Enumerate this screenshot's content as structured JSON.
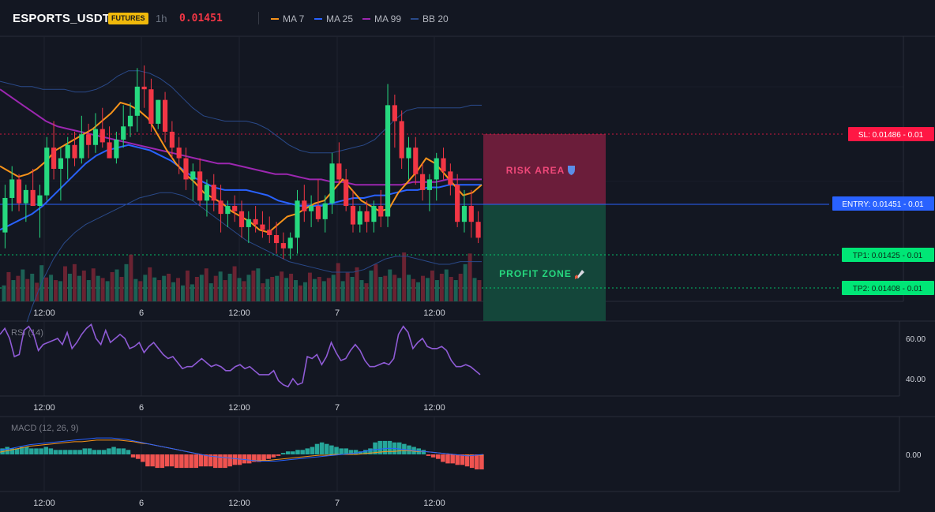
{
  "header": {
    "symbol": "ESPORTS_USDT",
    "badge": "FUTURES",
    "timeframe": "1h",
    "price": "0.01451",
    "legend": [
      {
        "label": "MA 7",
        "color": "#f7931a"
      },
      {
        "label": "MA 25",
        "color": "#2962ff"
      },
      {
        "label": "MA 99",
        "color": "#9c27b0"
      },
      {
        "label": "BB 20",
        "color": "#2a4a8a"
      }
    ]
  },
  "colors": {
    "background": "#131722",
    "up": "#26d97f",
    "down": "#f23645",
    "risk_fill": "#6b1d3a",
    "profit_fill": "#14463a",
    "entry": "#2962ff",
    "take_profit": "#00e676",
    "stop_loss": "#ff1744"
  },
  "trade": {
    "sl_label": "SL: 0.01486 - 0.01",
    "entry_label": "ENTRY: 0.01451 - 0.01",
    "tp1_label": "TP1: 0.01425 - 0.01",
    "tp2_label": "TP2: 0.01408 - 0.01",
    "risk_label": "RISK AREA",
    "risk_icon": "shield-icon",
    "profit_label": "PROFIT ZONE",
    "profit_icon": "rocket-icon"
  },
  "time_axis": [
    "12:00",
    "6",
    "12:00",
    "7",
    "12:00"
  ],
  "rsi": {
    "label": "RSI (14)",
    "ticks": [
      "60.00",
      "40.00"
    ],
    "y_range": [
      30,
      70
    ],
    "values": [
      62,
      65,
      60,
      51,
      52,
      64,
      66,
      62,
      54,
      57,
      58,
      59,
      60,
      57,
      63,
      55,
      58,
      62,
      65,
      67,
      60,
      57,
      64,
      58,
      60,
      62,
      60,
      55,
      56,
      58,
      53,
      56,
      58,
      55,
      52,
      50,
      51,
      48,
      45,
      46,
      46,
      48,
      50,
      48,
      46,
      47,
      46,
      44,
      44,
      46,
      47,
      45,
      46,
      44,
      42,
      42,
      42,
      44,
      39,
      37,
      36,
      40,
      37,
      38,
      51,
      50,
      52,
      47,
      51,
      58,
      53,
      49,
      50,
      54,
      57,
      54,
      49,
      46,
      46,
      47,
      48,
      47,
      50,
      62,
      66,
      63,
      55,
      58,
      60,
      56,
      55,
      55,
      56,
      54,
      49,
      46,
      46,
      47,
      46,
      44,
      42
    ]
  },
  "macd": {
    "label": "MACD (12, 26, 9)",
    "tick": "0.00",
    "histogram": [
      4,
      5,
      4,
      4,
      5,
      5,
      4,
      4,
      4,
      5,
      4,
      3,
      3,
      3,
      3,
      3,
      3,
      4,
      4,
      3,
      3,
      3,
      4,
      5,
      4,
      4,
      3,
      -2,
      -3,
      -5,
      -8,
      -8,
      -9,
      -9,
      -8,
      -8,
      -9,
      -9,
      -9,
      -9,
      -9,
      -8,
      -8,
      -8,
      -9,
      -9,
      -9,
      -8,
      -7,
      -7,
      -6,
      -6,
      -5,
      -5,
      -4,
      -3,
      -2,
      -1,
      1,
      2,
      2,
      3,
      3,
      4,
      5,
      7,
      8,
      7,
      6,
      5,
      4,
      4,
      3,
      3,
      2,
      3,
      4,
      8,
      9,
      9,
      9,
      8,
      8,
      7,
      6,
      5,
      4,
      3,
      -1,
      -2,
      -3,
      -5,
      -6,
      -6,
      -7,
      -7,
      -8,
      -9,
      -10,
      -10
    ],
    "macd_line": [
      6,
      7,
      9,
      11,
      13,
      14,
      15,
      16,
      17,
      18,
      19,
      20,
      21,
      22,
      22,
      22,
      21,
      20,
      18,
      16,
      14,
      12,
      10,
      8,
      6,
      4,
      2,
      0,
      -2,
      -3,
      -4,
      -5,
      -6,
      -7,
      -8,
      -9,
      -9,
      -9,
      -8,
      -7,
      -6,
      -5,
      -4,
      -3,
      -2,
      -1,
      0,
      1,
      2,
      4,
      6,
      7,
      8,
      8,
      7,
      6,
      5,
      4,
      3,
      2,
      1,
      0,
      -1,
      -2,
      -1,
      0
    ],
    "signal_line": [
      3,
      5,
      7,
      9,
      11,
      12,
      13,
      14,
      15,
      16,
      17,
      17,
      18,
      19,
      19,
      19,
      19,
      18,
      17,
      15,
      14,
      12,
      10,
      8,
      6,
      4,
      2,
      0,
      -2,
      -3,
      -4,
      -5,
      -6,
      -7,
      -8,
      -8,
      -8,
      -7,
      -6,
      -5,
      -4,
      -3,
      -2,
      -1,
      -1,
      0,
      0,
      0,
      0,
      1,
      2,
      3,
      4,
      4,
      5,
      5,
      4,
      4,
      3,
      2,
      1,
      0,
      -1,
      -1,
      -1,
      -1
    ],
    "y_range": [
      -25,
      28
    ]
  },
  "chart_data": {
    "type": "candlestick",
    "y_range": [
      0.01432,
      0.01532
    ],
    "candles": [
      [
        0.01458,
        0.01476,
        0.01452,
        0.01471
      ],
      [
        0.01471,
        0.01483,
        0.01466,
        0.01478
      ],
      [
        0.01478,
        0.0148,
        0.01466,
        0.01469
      ],
      [
        0.01469,
        0.01476,
        0.01462,
        0.01474
      ],
      [
        0.01474,
        0.01482,
        0.01468,
        0.01468
      ],
      [
        0.01468,
        0.01476,
        0.01456,
        0.01472
      ],
      [
        0.01472,
        0.01494,
        0.0147,
        0.0149
      ],
      [
        0.0149,
        0.015,
        0.01478,
        0.01482
      ],
      [
        0.01482,
        0.0149,
        0.0147,
        0.01486
      ],
      [
        0.01486,
        0.01494,
        0.01478,
        0.01491
      ],
      [
        0.01491,
        0.01496,
        0.01483,
        0.01486
      ],
      [
        0.01486,
        0.01502,
        0.01484,
        0.01495
      ],
      [
        0.01495,
        0.01499,
        0.01486,
        0.01491
      ],
      [
        0.01491,
        0.01503,
        0.01488,
        0.01497
      ],
      [
        0.01497,
        0.01505,
        0.0149,
        0.01492
      ],
      [
        0.01492,
        0.01498,
        0.01486,
        0.01486
      ],
      [
        0.01486,
        0.01496,
        0.01484,
        0.01493
      ],
      [
        0.01493,
        0.01506,
        0.0149,
        0.01498
      ],
      [
        0.01498,
        0.01507,
        0.01494,
        0.01502
      ],
      [
        0.01502,
        0.0152,
        0.01496,
        0.01513
      ],
      [
        0.01513,
        0.01521,
        0.01505,
        0.01512
      ],
      [
        0.01512,
        0.01516,
        0.01496,
        0.01499
      ],
      [
        0.01499,
        0.01508,
        0.01497,
        0.01508
      ],
      [
        0.01508,
        0.01511,
        0.01492,
        0.01496
      ],
      [
        0.01496,
        0.015,
        0.01486,
        0.0149
      ],
      [
        0.0149,
        0.01494,
        0.0148,
        0.01486
      ],
      [
        0.01486,
        0.0149,
        0.01474,
        0.01478
      ],
      [
        0.01478,
        0.01484,
        0.0147,
        0.01481
      ],
      [
        0.01481,
        0.01486,
        0.01468,
        0.0147
      ],
      [
        0.0147,
        0.01478,
        0.01464,
        0.01476
      ],
      [
        0.01476,
        0.0148,
        0.01466,
        0.0147
      ],
      [
        0.0147,
        0.01476,
        0.01458,
        0.01465
      ],
      [
        0.01465,
        0.0147,
        0.0146,
        0.01468
      ],
      [
        0.01468,
        0.01472,
        0.01462,
        0.01466
      ],
      [
        0.01466,
        0.0147,
        0.01456,
        0.0146
      ],
      [
        0.0146,
        0.01466,
        0.01454,
        0.01463
      ],
      [
        0.01463,
        0.01468,
        0.01458,
        0.01461
      ],
      [
        0.01461,
        0.01466,
        0.01456,
        0.01459
      ],
      [
        0.01459,
        0.01464,
        0.01454,
        0.01457
      ],
      [
        0.01457,
        0.01462,
        0.0145,
        0.01454
      ],
      [
        0.01454,
        0.01458,
        0.01448,
        0.01452
      ],
      [
        0.01452,
        0.01458,
        0.01448,
        0.01456
      ],
      [
        0.01456,
        0.01474,
        0.0145,
        0.0147
      ],
      [
        0.0147,
        0.01476,
        0.01462,
        0.01466
      ],
      [
        0.01466,
        0.01472,
        0.0146,
        0.01468
      ],
      [
        0.01468,
        0.01478,
        0.01462,
        0.01463
      ],
      [
        0.01463,
        0.01472,
        0.01458,
        0.01469
      ],
      [
        0.01469,
        0.01488,
        0.01465,
        0.01484
      ],
      [
        0.01484,
        0.01492,
        0.01476,
        0.01478
      ],
      [
        0.01478,
        0.01482,
        0.01466,
        0.01468
      ],
      [
        0.01468,
        0.01474,
        0.01458,
        0.01461
      ],
      [
        0.01461,
        0.01468,
        0.01458,
        0.01466
      ],
      [
        0.01466,
        0.0147,
        0.01458,
        0.01462
      ],
      [
        0.01462,
        0.0147,
        0.01458,
        0.01468
      ],
      [
        0.01468,
        0.01474,
        0.0146,
        0.01464
      ],
      [
        0.01464,
        0.01514,
        0.0146,
        0.01506
      ],
      [
        0.01506,
        0.0151,
        0.0149,
        0.015
      ],
      [
        0.015,
        0.01504,
        0.01482,
        0.01486
      ],
      [
        0.01486,
        0.01494,
        0.01478,
        0.0149
      ],
      [
        0.0149,
        0.01494,
        0.01476,
        0.0148
      ],
      [
        0.0148,
        0.01484,
        0.0147,
        0.01474
      ],
      [
        0.01474,
        0.0148,
        0.01466,
        0.01478
      ],
      [
        0.01478,
        0.01488,
        0.0147,
        0.01486
      ],
      [
        0.01486,
        0.0149,
        0.01478,
        0.01481
      ],
      [
        0.01481,
        0.01484,
        0.01472,
        0.01476
      ],
      [
        0.01476,
        0.0148,
        0.0146,
        0.01462
      ],
      [
        0.01462,
        0.01474,
        0.01458,
        0.01468
      ],
      [
        0.01468,
        0.01474,
        0.01456,
        0.01462
      ],
      [
        0.01462,
        0.01466,
        0.01454,
        0.01456
      ]
    ],
    "volumes": [
      30,
      55,
      40,
      48,
      60,
      42,
      52,
      35,
      68,
      45,
      50,
      40,
      38,
      66,
      52,
      70,
      48,
      58,
      40,
      62,
      48,
      44,
      38,
      55,
      60,
      46,
      70,
      88,
      42,
      38,
      50,
      64,
      45,
      40,
      48,
      52,
      36,
      44,
      30,
      58,
      32,
      46,
      50,
      62,
      34,
      48,
      56,
      40,
      52,
      66,
      44,
      38,
      50,
      58,
      62,
      34,
      42,
      46,
      48,
      56,
      44,
      52,
      40,
      30,
      36,
      54,
      42,
      46,
      38,
      44,
      50,
      72,
      38,
      54,
      46,
      64,
      40,
      34,
      58,
      70,
      46,
      48,
      60,
      50,
      44,
      92,
      50,
      42,
      36,
      48,
      44,
      58,
      40,
      52,
      60,
      46,
      40,
      52,
      70,
      90,
      44,
      40
    ],
    "ma7": [
      0.01483,
      0.01481,
      0.01479,
      0.0148,
      0.01482,
      0.01485,
      0.01489,
      0.01491,
      0.01493,
      0.01495,
      0.01497,
      0.015,
      0.01503,
      0.01507,
      0.01506,
      0.01504,
      0.01501,
      0.01495,
      0.01489,
      0.01484,
      0.0148,
      0.01477,
      0.01473,
      0.01471,
      0.01469,
      0.01466,
      0.01464,
      0.01462,
      0.01459,
      0.01458,
      0.01461,
      0.01464,
      0.01465,
      0.01467,
      0.01469,
      0.0147,
      0.01474,
      0.01478,
      0.01474,
      0.0147,
      0.01468,
      0.01466,
      0.01467,
      0.01473,
      0.01477,
      0.01481,
      0.01486,
      0.01484,
      0.0148,
      0.01476,
      0.01472,
      0.01473,
      0.01476
    ],
    "ma25": [
      0.01459,
      0.01461,
      0.01463,
      0.01465,
      0.01468,
      0.01472,
      0.01476,
      0.0148,
      0.01484,
      0.01487,
      0.01489,
      0.0149,
      0.01491,
      0.0149,
      0.01489,
      0.01487,
      0.01485,
      0.01482,
      0.01479,
      0.01477,
      0.01475,
      0.01474,
      0.01474,
      0.01474,
      0.01473,
      0.01472,
      0.0147,
      0.01469,
      0.01468,
      0.01468,
      0.01468,
      0.01469,
      0.0147,
      0.01471,
      0.01471,
      0.01472,
      0.01472,
      0.01473,
      0.01474,
      0.01474,
      0.01475,
      0.01475,
      0.01476,
      0.01476,
      0.01476,
      0.01476
    ],
    "ma99": [
      0.01512,
      0.01509,
      0.01506,
      0.01503,
      0.015,
      0.01498,
      0.01497,
      0.01496,
      0.01495,
      0.01494,
      0.01493,
      0.01492,
      0.01491,
      0.0149,
      0.01489,
      0.01488,
      0.01487,
      0.01486,
      0.01485,
      0.01484,
      0.01484,
      0.01483,
      0.01482,
      0.01481,
      0.0148,
      0.0148,
      0.01479,
      0.01478,
      0.01478,
      0.01477,
      0.01477,
      0.01476,
      0.01476,
      0.01476,
      0.01476,
      0.01476,
      0.01477,
      0.01477,
      0.01477,
      0.01478,
      0.01478,
      0.01478,
      0.01478
    ],
    "bb_upper": [
      0.01515,
      0.01514,
      0.01513,
      0.01513,
      0.01512,
      0.01512,
      0.01512,
      0.01511,
      0.01511,
      0.01512,
      0.01514,
      0.01517,
      0.01519,
      0.01519,
      0.01518,
      0.01516,
      0.01513,
      0.01509,
      0.01505,
      0.01502,
      0.01501,
      0.015,
      0.015,
      0.015,
      0.01499,
      0.01497,
      0.01494,
      0.01491,
      0.01489,
      0.01488,
      0.01488,
      0.01488,
      0.01489,
      0.0149,
      0.01491,
      0.01493,
      0.01497,
      0.01501,
      0.01504,
      0.01505,
      0.01505,
      0.01505,
      0.01505,
      0.01505,
      0.01506,
      0.01506
    ],
    "bb_lower": [
      0.01395,
      0.01405,
      0.01418,
      0.0143,
      0.0144,
      0.01448,
      0.01454,
      0.01458,
      0.01461,
      0.01463,
      0.01465,
      0.01467,
      0.01469,
      0.01471,
      0.01472,
      0.01473,
      0.01473,
      0.01472,
      0.0147,
      0.01467,
      0.01464,
      0.01461,
      0.01458,
      0.01455,
      0.01453,
      0.01451,
      0.01449,
      0.01447,
      0.01446,
      0.01445,
      0.01444,
      0.01443,
      0.01443,
      0.01443,
      0.01444,
      0.01446,
      0.01448,
      0.01449,
      0.01449,
      0.01448,
      0.01447,
      0.01446,
      0.01446,
      0.01447,
      0.01447,
      0.01447
    ]
  }
}
